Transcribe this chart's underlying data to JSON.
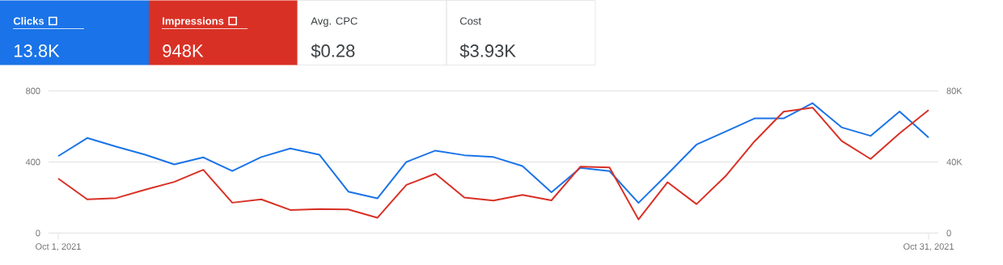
{
  "chart_data": {
    "type": "line",
    "x": [
      "2021-10-01",
      "2021-10-02",
      "2021-10-03",
      "2021-10-04",
      "2021-10-05",
      "2021-10-06",
      "2021-10-07",
      "2021-10-08",
      "2021-10-09",
      "2021-10-10",
      "2021-10-11",
      "2021-10-12",
      "2021-10-13",
      "2021-10-14",
      "2021-10-15",
      "2021-10-16",
      "2021-10-17",
      "2021-10-18",
      "2021-10-19",
      "2021-10-20",
      "2021-10-21",
      "2021-10-22",
      "2021-10-23",
      "2021-10-24",
      "2021-10-25",
      "2021-10-26",
      "2021-10-27",
      "2021-10-28",
      "2021-10-29",
      "2021-10-30",
      "2021-10-31"
    ],
    "series": [
      {
        "name": "Clicks",
        "color": "#1a73e8",
        "values": [
          433,
          535,
          486,
          441,
          386,
          426,
          349,
          428,
          476,
          441,
          233,
          195,
          400,
          464,
          438,
          428,
          377,
          230,
          367,
          349,
          170,
          332,
          498,
          571,
          645,
          645,
          731,
          595,
          547,
          684,
          537
        ]
      },
      {
        "name": "Impressions",
        "color": "#d93025",
        "axis": "y2",
        "values": [
          30700,
          19000,
          19700,
          24400,
          28800,
          35600,
          17100,
          19000,
          13000,
          13500,
          13300,
          8600,
          27100,
          33400,
          20000,
          18300,
          21500,
          18400,
          37400,
          36900,
          7700,
          28600,
          16300,
          32000,
          51600,
          68300,
          70600,
          51900,
          41700,
          56100,
          69200
        ]
      }
    ],
    "xlim": [
      "2021-09-30T16:00",
      "2021-10-31T08:00"
    ],
    "xticks": [
      {
        "value": "2021-10-01",
        "label": "Oct 1, 2021"
      },
      {
        "value": "2021-10-31",
        "label": "Oct 31, 2021"
      }
    ],
    "ylim": [
      0,
      800
    ],
    "yticks": [
      0,
      400,
      800
    ],
    "y2lim": [
      0,
      80000
    ],
    "y2ticks": [
      {
        "value": 0,
        "label": "0"
      },
      {
        "value": 40000,
        "label": "40K"
      },
      {
        "value": 80000,
        "label": "80K"
      }
    ],
    "grid": "y",
    "legend": "top left",
    "line_style": "solid",
    "marker": "none",
    "annotations": [
      "13.8K",
      "948K",
      "Avg. CPC",
      "$0.28",
      "Cost",
      "$3.93K"
    ]
  }
}
